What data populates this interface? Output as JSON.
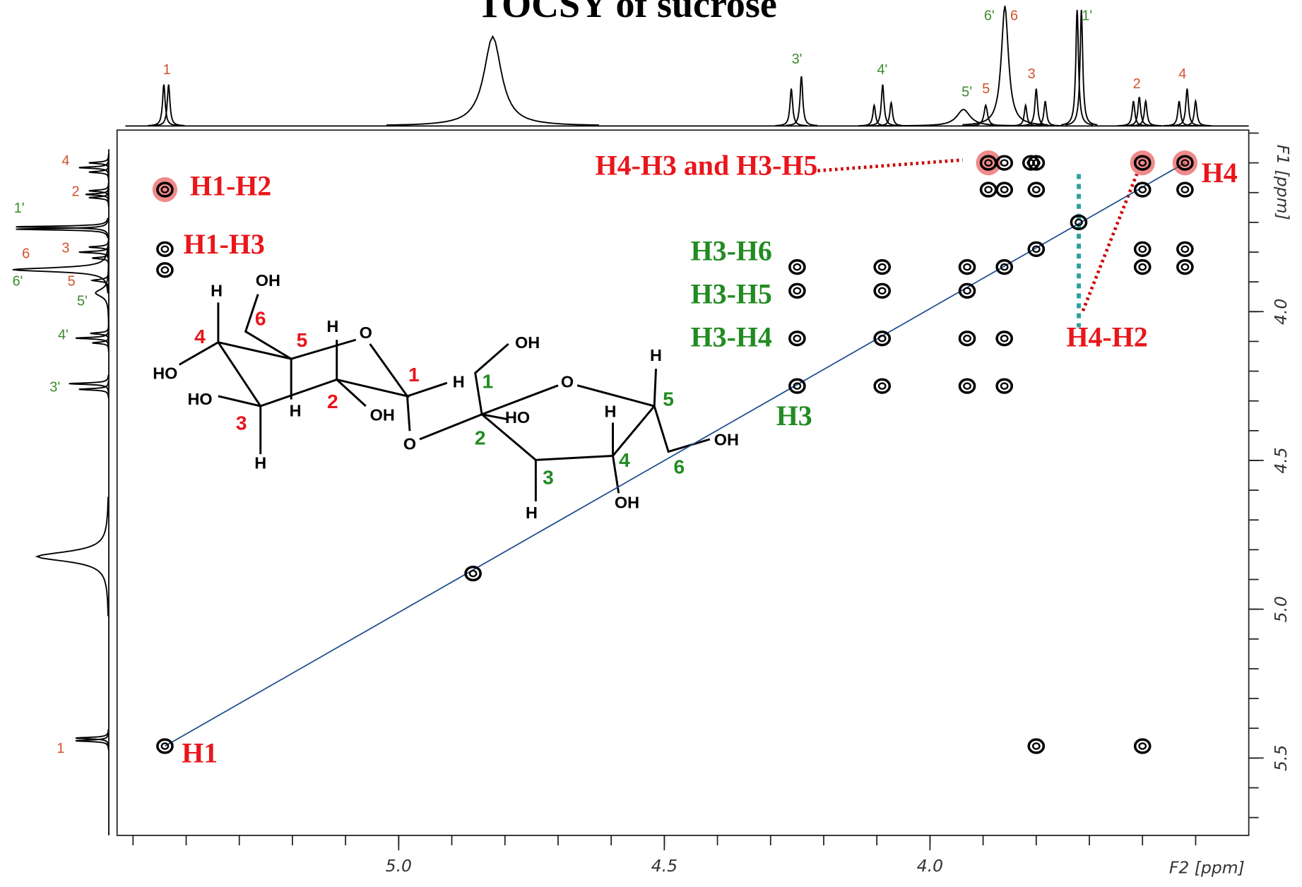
{
  "chart_data": {
    "type": "contour",
    "title": "TOCSY of sucrose",
    "xlabel": "F2 [ppm]",
    "ylabel": "F1 [ppm]",
    "xlim": [
      5.53,
      3.4
    ],
    "ylim": [
      3.39,
      5.76
    ],
    "xticks": [
      {
        "value": 5.0,
        "label": "5.0"
      },
      {
        "value": 4.5,
        "label": "4.5"
      },
      {
        "value": 4.0,
        "label": "4.0"
      }
    ],
    "yticks": [
      {
        "value": 4.0,
        "label": "4.0"
      },
      {
        "value": 4.5,
        "label": "4.5"
      },
      {
        "value": 5.0,
        "label": "5.0"
      },
      {
        "value": 5.5,
        "label": "5.5"
      }
    ],
    "x_minor_ticks": [
      5.5,
      5.4,
      5.3,
      5.2,
      5.1,
      5.0,
      4.9,
      4.8,
      4.7,
      4.6,
      4.5,
      4.4,
      4.3,
      4.2,
      4.1,
      4.0,
      3.9,
      3.8,
      3.7,
      3.6,
      3.5
    ],
    "y_minor_ticks": [
      3.4,
      3.5,
      3.6,
      3.7,
      3.8,
      3.9,
      4.0,
      4.1,
      4.2,
      4.3,
      4.4,
      4.5,
      4.6,
      4.7,
      4.8,
      4.9,
      5.0,
      5.1,
      5.2,
      5.3,
      5.4,
      5.5,
      5.6,
      5.7
    ],
    "x": [
      5.44,
      5.44,
      5.44,
      5.44,
      4.86,
      4.25,
      4.25,
      4.25,
      4.25,
      4.09,
      4.09,
      4.09,
      4.09,
      3.93,
      3.93,
      3.93,
      3.93,
      3.86,
      3.86,
      3.86,
      3.89,
      3.86,
      3.81,
      3.8,
      3.89,
      3.86,
      3.8,
      3.8,
      3.72,
      3.6,
      3.6,
      3.6,
      3.6,
      3.52,
      3.52,
      3.52,
      3.52,
      3.8,
      3.6
    ],
    "values": [
      5.46,
      3.59,
      3.79,
      3.86,
      4.88,
      3.85,
      3.93,
      4.09,
      4.25,
      3.85,
      3.93,
      4.09,
      4.25,
      3.85,
      3.93,
      4.09,
      4.25,
      4.25,
      4.09,
      3.85,
      3.5,
      3.5,
      3.5,
      3.5,
      3.59,
      3.59,
      3.59,
      3.79,
      3.7,
      3.5,
      3.59,
      3.79,
      3.85,
      3.5,
      3.59,
      3.79,
      3.85,
      5.46,
      5.46
    ],
    "highlight": [
      false,
      true,
      false,
      false,
      false,
      false,
      false,
      false,
      false,
      false,
      false,
      false,
      false,
      false,
      false,
      false,
      false,
      false,
      false,
      false,
      true,
      false,
      false,
      false,
      false,
      false,
      false,
      false,
      false,
      true,
      false,
      false,
      false,
      true,
      false,
      false,
      false,
      false,
      false
    ],
    "diagonal": {
      "x": [
        5.44,
        3.52
      ],
      "y": [
        5.46,
        3.5
      ]
    },
    "projection": {
      "x": [
        5.442,
        5.433,
        4.823,
        4.261,
        4.242,
        4.105,
        4.089,
        4.073,
        3.937,
        3.895,
        3.859,
        3.82,
        3.8,
        3.783,
        3.723,
        3.715,
        3.617,
        3.606,
        3.594,
        3.531,
        3.516,
        3.5
      ],
      "intensity": [
        50,
        50,
        108,
        45,
        60,
        25,
        50,
        28,
        20,
        25,
        145,
        25,
        45,
        30,
        140,
        140,
        30,
        35,
        30,
        30,
        45,
        30
      ],
      "width": [
        0.003,
        0.003,
        0.02,
        0.003,
        0.003,
        0.003,
        0.003,
        0.003,
        0.015,
        0.004,
        0.008,
        0.003,
        0.003,
        0.003,
        0.003,
        0.003,
        0.003,
        0.003,
        0.003,
        0.003,
        0.003,
        0.003
      ]
    },
    "top_labels": [
      "1",
      "3'",
      "4'",
      "5'",
      "5",
      "6'",
      "6",
      "3",
      "1'",
      "2",
      "4"
    ],
    "left_labels": [
      "4",
      "2",
      "1'",
      "3",
      "6",
      "5",
      "6'",
      "5'",
      "4'",
      "3'",
      "1"
    ],
    "annotations": [
      "H1-H2",
      "H1-H3",
      "H4-H3 and H3-H5",
      "H4",
      "H4-H2",
      "H1",
      "H3-H6",
      "H3-H5",
      "H3-H4",
      "H3"
    ]
  },
  "structure": {
    "labels": [
      "H",
      "OH",
      "6",
      "4",
      "5",
      "H",
      "O",
      "HO",
      "1",
      "H",
      "HO",
      "H",
      "2",
      "OH",
      "3",
      "H",
      "O",
      "OH",
      "1",
      "2",
      "HO",
      "O",
      "H",
      "5",
      "H",
      "3",
      "4",
      "OH",
      "H",
      "6",
      "OH"
    ]
  }
}
